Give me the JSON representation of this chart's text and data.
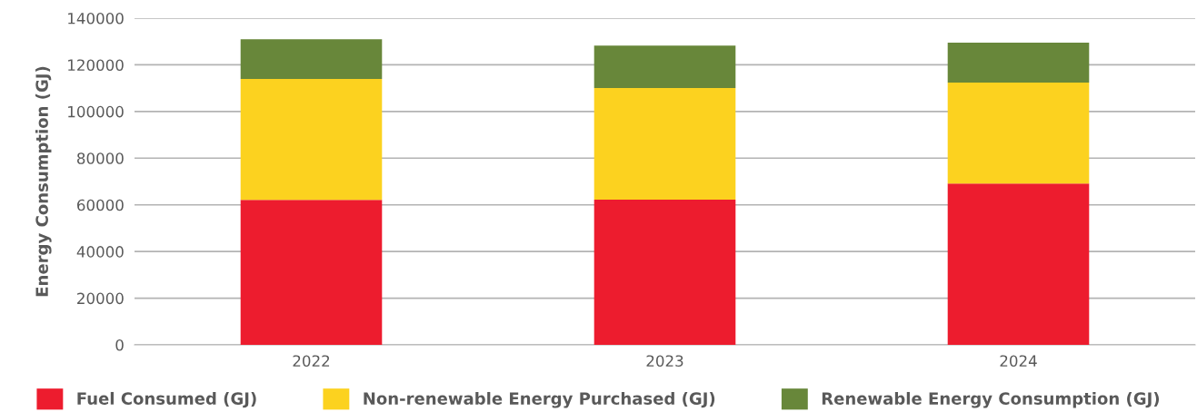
{
  "chart_data": {
    "type": "bar",
    "stacked": true,
    "ylabel": "Energy Consumption (GJ)",
    "categories": [
      "2022",
      "2023",
      "2024"
    ],
    "series": [
      {
        "name": "Fuel Consumed (GJ)",
        "color": "#ed1c2e",
        "values": [
          62100,
          62200,
          69100
        ]
      },
      {
        "name": "Non-renewable Energy Purchased (GJ)",
        "color": "#fcd21f",
        "values": [
          51800,
          47900,
          43300
        ]
      },
      {
        "name": "Renewable Energy Consumption (GJ)",
        "color": "#68873a",
        "values": [
          17100,
          18100,
          17100
        ]
      }
    ],
    "ylim": [
      0,
      140000
    ],
    "yticks": [
      0,
      20000,
      40000,
      60000,
      80000,
      100000,
      120000,
      140000
    ],
    "grid": "y",
    "legend": "bottom"
  }
}
